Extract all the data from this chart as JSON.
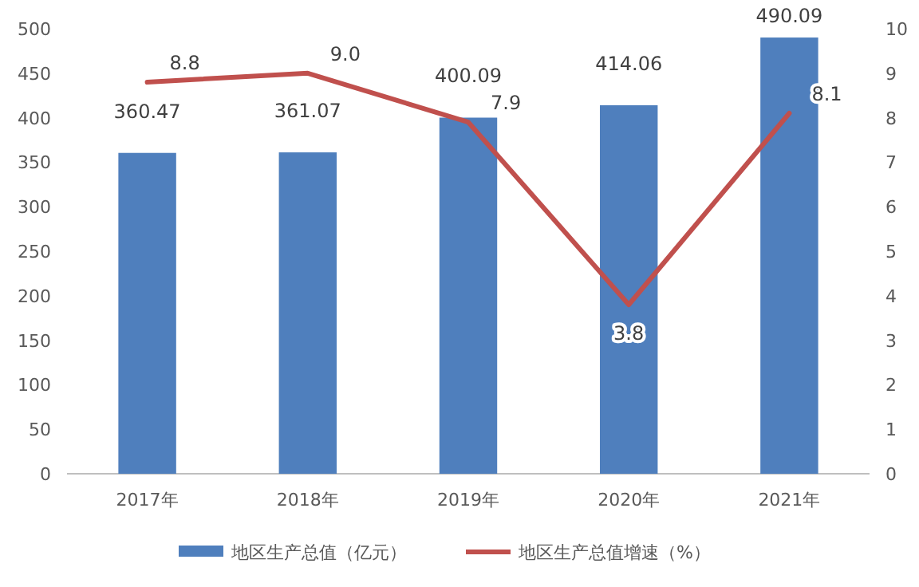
{
  "chart_data": {
    "type": "bar",
    "categories": [
      "2017年",
      "2018年",
      "2019年",
      "2020年",
      "2021年"
    ],
    "series": [
      {
        "name": "地区生产总值（亿元）",
        "color": "#4f7fbd",
        "values": [
          360.47,
          361.07,
          400.09,
          414.06,
          490.09
        ],
        "value_labels": [
          "360.47",
          "361.07",
          "400.09",
          "414.06",
          "490.09"
        ]
      },
      {
        "name": "地区生产总值增速（%）",
        "type": "line",
        "axis": "y2",
        "color": "#c0504d",
        "values": [
          8.8,
          9.0,
          7.9,
          3.8,
          8.1
        ],
        "value_labels": [
          "8.8",
          "9.0",
          "7.9",
          "3.8",
          "8.1"
        ]
      }
    ],
    "ylim": [
      0,
      500
    ],
    "yticks": [
      0,
      50,
      100,
      150,
      200,
      250,
      300,
      350,
      400,
      450,
      500
    ],
    "y2lim": [
      0,
      10
    ],
    "y2ticks": [
      0,
      1,
      2,
      3,
      4,
      5,
      6,
      7,
      8,
      9,
      10
    ],
    "grid": false,
    "legend": "bottom",
    "marker": "none",
    "line_style": "solid"
  }
}
